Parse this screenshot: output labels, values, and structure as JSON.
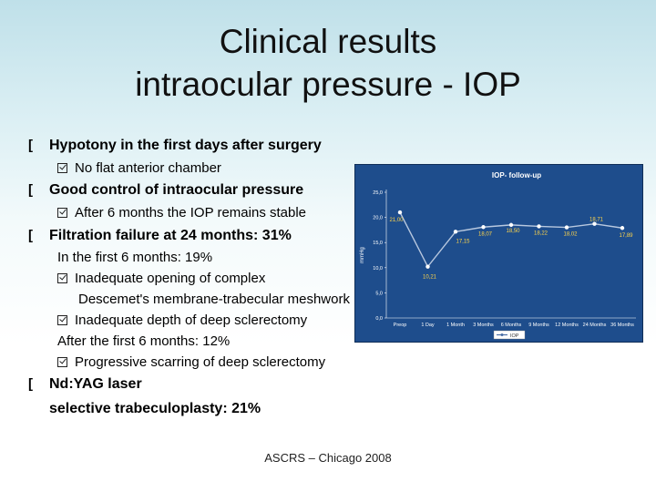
{
  "slide": {
    "title_line1": "Clinical results",
    "title_line2": "intraocular pressure - IOP",
    "footer": "ASCRS – Chicago 2008"
  },
  "bullets": {
    "b1": "Hypotony in the first days after surgery",
    "b1_sub": "No flat anterior chamber",
    "b2": "Good control of intraocular pressure",
    "b2_sub": "After 6 months the IOP remains stable",
    "b3": "Filtration failure at 24 months: 31%",
    "b3_first": "In the first 6 months: 19%",
    "b3_first_sub1_a": "Inadequate opening of complex",
    "b3_first_sub1_b": "Descemet's membrane-trabecular meshwork",
    "b3_first_sub2": "Inadequate depth of deep sclerectomy",
    "b3_after": "After the first 6 months: 12%",
    "b3_after_sub": "Progressive scarring of deep sclerectomy",
    "b4_line1": "Nd:YAG laser",
    "b4_line2": "selective trabeculoplasty: 21%"
  },
  "chart_data": {
    "type": "line",
    "title": "IOP- follow-up",
    "ylabel": "mmHg",
    "xlabel": "",
    "categories": [
      "Preop",
      "1 Day",
      "1 Month",
      "3 Months",
      "6 Months",
      "9 Months",
      "12 Months",
      "24 Months",
      "36 Months"
    ],
    "series": [
      {
        "name": "IOP",
        "values": [
          21.0,
          10.21,
          17.15,
          18.07,
          18.5,
          18.22,
          18.02,
          18.71,
          17.89
        ]
      }
    ],
    "data_labels": [
      "21,00",
      "10,21",
      "17,15",
      "18,07",
      "18,50",
      "18,22",
      "18,02",
      "18,71",
      "17,89"
    ],
    "yticks": [
      "0,0",
      "5,0",
      "10,0",
      "15,0",
      "20,0",
      "25,0"
    ],
    "ylim": [
      0,
      25
    ],
    "grid": false,
    "legend": "bottom",
    "colors": {
      "background": "#1e4d8c",
      "line": "#b8c8df",
      "marker": "#ffffff",
      "labels": "#ffd54a",
      "text": "#ffffff"
    }
  }
}
